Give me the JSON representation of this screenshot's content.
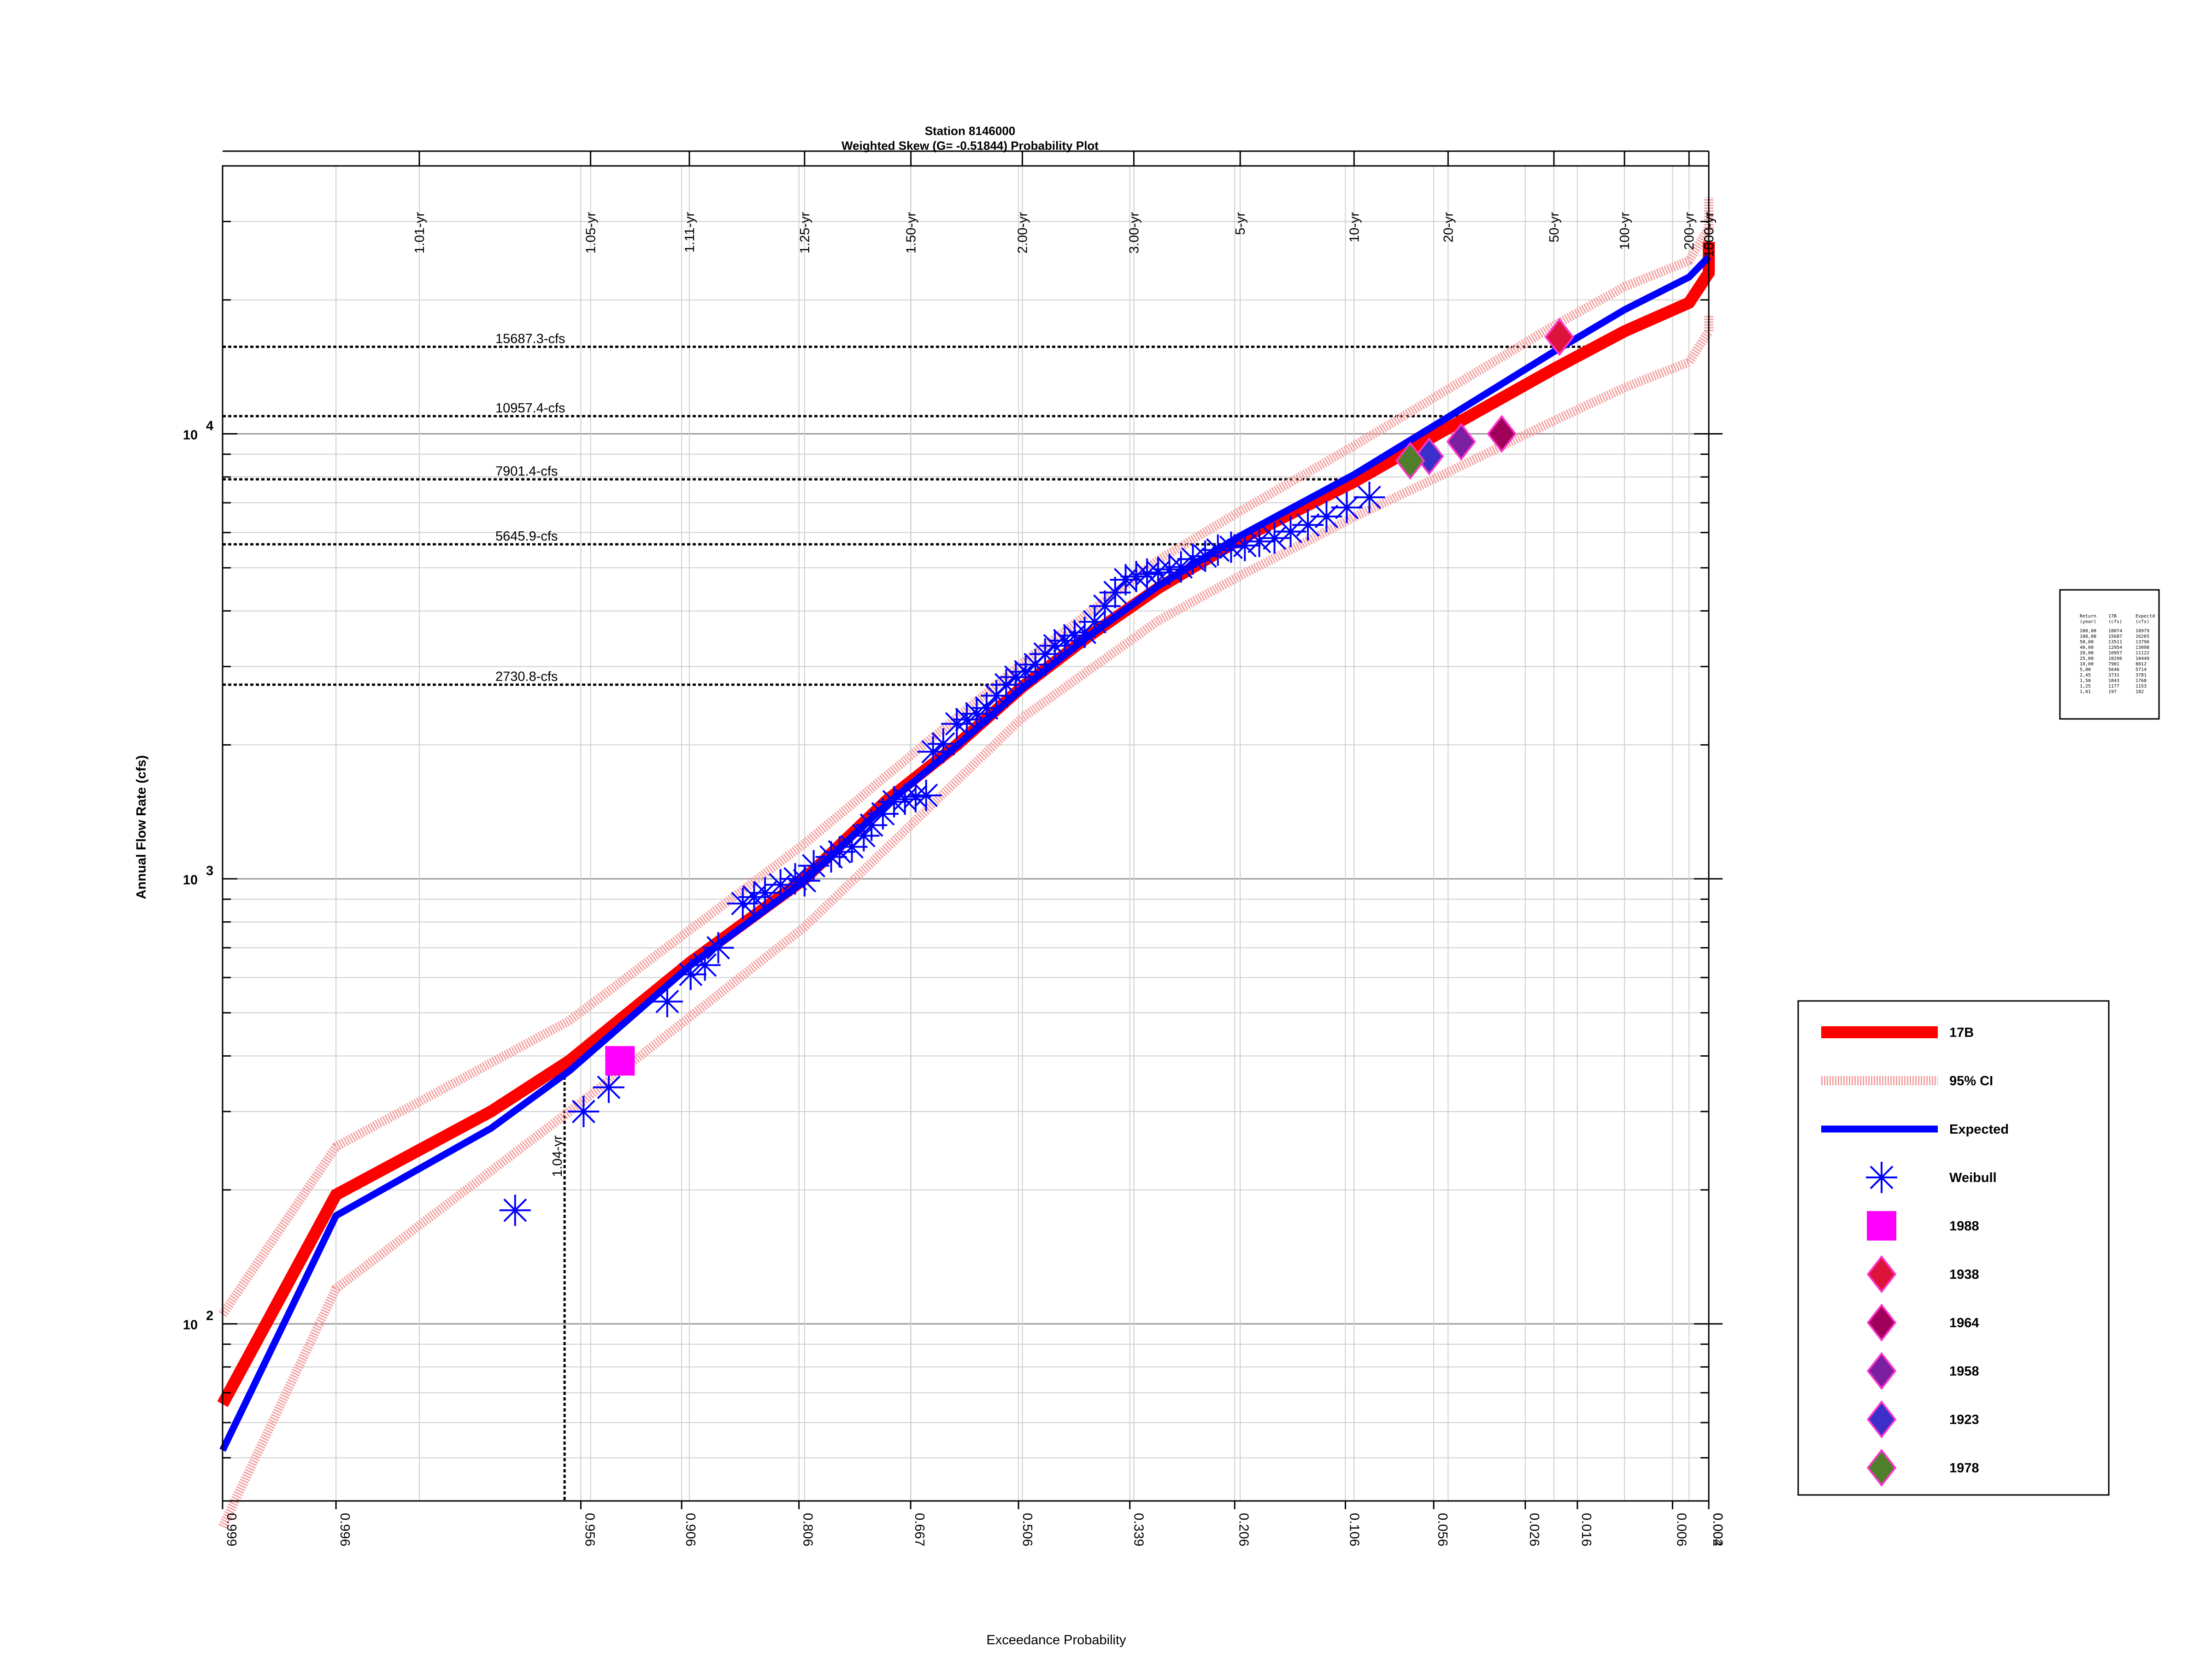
{
  "chart_data": {
    "type": "scatter",
    "title": "Station 8146000",
    "subtitle": "Weighted Skew (G= -0.51844) Probability Plot",
    "xlabel": "Exceedance Probability",
    "ylabel": "Annual Flow Rate (cfs)",
    "x_scale": "normal-probability",
    "y_scale": "log",
    "xlim": [
      0.999,
      0.004
    ],
    "ylim": [
      40,
      40000
    ],
    "grid": true,
    "x_ticks": [
      "0.999",
      "0.996",
      "0.956",
      "0.906",
      "0.806",
      "0.667",
      "0.506",
      "0.339",
      "0.206",
      "0.106",
      "0.056",
      "0.026",
      "0.016",
      "0.006",
      "0.002",
      "0.004"
    ],
    "top_ticks": [
      "1.01-yr",
      "1.05-yr",
      "1.11-yr",
      "1.25-yr",
      "1.50-yr",
      "2.00-yr",
      "3.00-yr",
      "5-yr",
      "10-yr",
      "20-yr",
      "50-yr",
      "100-yr",
      "200-yr",
      "500-yr",
      "1000-yr"
    ],
    "y_ticks": [
      "10",
      "10",
      "10"
    ],
    "y_tick_exponents": [
      "2",
      "3",
      "4"
    ],
    "reference_lines": [
      "15687.3-cfs",
      "10957.4-cfs",
      "7901.4-cfs",
      "5645.9-cfs",
      "2730.8-cfs"
    ],
    "vertical_marker": "1.04-yr",
    "series": [
      {
        "name": "17B",
        "color": "#ff0000",
        "x": [
          0.999,
          0.996,
          0.98,
          0.96,
          0.9,
          0.8,
          0.7,
          0.6,
          0.5,
          0.4,
          0.3,
          0.2,
          0.1,
          0.05,
          0.02,
          0.01,
          0.005,
          0.002,
          0.001
        ],
        "y": [
          66,
          195,
          300,
          390,
          650,
          1000,
          1500,
          2000,
          2700,
          3500,
          4500,
          5800,
          7800,
          10300,
          14000,
          17000,
          19700,
          23000,
          27000
        ]
      },
      {
        "name": "95% CI upper",
        "color": "#ffb0b0",
        "x": [
          0.999,
          0.996,
          0.96,
          0.8,
          0.5,
          0.3,
          0.2,
          0.1,
          0.05,
          0.02,
          0.01,
          0.005,
          0.002,
          0.001
        ],
        "y": [
          105,
          250,
          480,
          1200,
          3050,
          5200,
          6700,
          9400,
          12600,
          17500,
          21400,
          24500,
          29000,
          34000
        ]
      },
      {
        "name": "95% CI lower",
        "color": "#ffb0b0",
        "x": [
          0.999,
          0.996,
          0.96,
          0.8,
          0.5,
          0.3,
          0.2,
          0.1,
          0.05,
          0.02,
          0.01,
          0.005,
          0.002,
          0.001
        ],
        "y": [
          35,
          120,
          300,
          780,
          2300,
          3800,
          4800,
          6500,
          8200,
          10700,
          12700,
          14500,
          17000,
          18500
        ]
      },
      {
        "name": "Expected",
        "color": "#0000ff",
        "x": [
          0.999,
          0.996,
          0.98,
          0.96,
          0.9,
          0.8,
          0.7,
          0.6,
          0.5,
          0.4,
          0.3,
          0.2,
          0.1,
          0.05,
          0.02,
          0.01,
          0.005,
          0.002
        ],
        "y": [
          52,
          175,
          275,
          370,
          640,
          990,
          1470,
          1990,
          2680,
          3500,
          4550,
          5900,
          8100,
          10900,
          15300,
          19000,
          22500,
          25000
        ]
      }
    ],
    "weibull": {
      "name": "Weibull",
      "color": "#0000ff",
      "x": [
        0.975,
        0.955,
        0.945,
        0.915,
        0.9,
        0.89,
        0.88,
        0.86,
        0.85,
        0.84,
        0.825,
        0.81,
        0.8,
        0.79,
        0.77,
        0.76,
        0.745,
        0.73,
        0.72,
        0.705,
        0.69,
        0.675,
        0.66,
        0.645,
        0.635,
        0.62,
        0.6,
        0.585,
        0.57,
        0.555,
        0.54,
        0.525,
        0.51,
        0.495,
        0.48,
        0.465,
        0.45,
        0.435,
        0.42,
        0.405,
        0.39,
        0.375,
        0.36,
        0.345,
        0.33,
        0.315,
        0.3,
        0.285,
        0.27,
        0.255,
        0.24,
        0.225,
        0.21,
        0.195,
        0.18,
        0.165,
        0.15,
        0.135,
        0.12,
        0.105,
        0.09
      ],
      "y": [
        180,
        300,
        340,
        530,
        610,
        640,
        700,
        880,
        910,
        930,
        970,
        1000,
        990,
        1070,
        1120,
        1150,
        1180,
        1250,
        1320,
        1400,
        1490,
        1510,
        1530,
        1540,
        1930,
        2010,
        2230,
        2280,
        2350,
        2420,
        2580,
        2730,
        2840,
        2920,
        3030,
        3200,
        3340,
        3430,
        3520,
        3580,
        3780,
        4100,
        4400,
        4700,
        4780,
        4840,
        4880,
        4960,
        5020,
        5230,
        5310,
        5480,
        5560,
        5610,
        5730,
        5830,
        6030,
        6240,
        6520,
        6830,
        7200
      ]
    },
    "historical_points": [
      {
        "name": "1988",
        "shape": "square",
        "color": "#ff00ff",
        "x": 0.94,
        "y": 390
      },
      {
        "name": "1938",
        "shape": "diamond",
        "color": "#dc143c",
        "x": 0.019,
        "y": 16500
      },
      {
        "name": "1964",
        "shape": "diamond",
        "color": "#a0005a",
        "x": 0.032,
        "y": 10000
      },
      {
        "name": "1958",
        "shape": "diamond",
        "color": "#7a1fa0",
        "x": 0.045,
        "y": 9600
      },
      {
        "name": "1923",
        "shape": "diamond",
        "color": "#3a2fc8",
        "x": 0.058,
        "y": 8900
      },
      {
        "name": "1978",
        "shape": "diamond",
        "color": "#4f7f2a",
        "x": 0.067,
        "y": 8700
      }
    ],
    "legend": {
      "placement": "right",
      "entries": [
        "17B",
        "95% CI",
        "Expected",
        "Weibull",
        "1988",
        "1938",
        "1964",
        "1958",
        "1923",
        "1978"
      ]
    },
    "table": {
      "header": [
        "Return",
        "17B",
        "Expectd",
        "(year)",
        "(cfs)",
        "(cfs)"
      ],
      "rows": [
        [
          "200,00",
          "18074",
          "18979"
        ],
        [
          "100,00",
          "15687",
          "16265"
        ],
        [
          "50,00",
          "13511",
          "13796"
        ],
        [
          "40,00",
          "12954",
          "13098"
        ],
        [
          "20,00",
          "10957",
          "11122"
        ],
        [
          "25,00",
          "10296",
          "10449"
        ],
        [
          "10,00",
          "7901",
          "8012"
        ],
        [
          "5,00",
          "5646",
          "5714"
        ],
        [
          "2,45",
          "3731",
          "3781"
        ],
        [
          "1,50",
          "1843",
          "1768"
        ],
        [
          "1,25",
          "1177",
          "1153"
        ],
        [
          "1,01",
          "197",
          "182"
        ]
      ]
    }
  }
}
